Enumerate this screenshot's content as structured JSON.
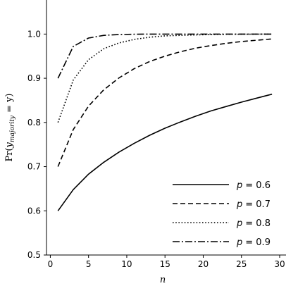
{
  "chart_data": {
    "type": "line",
    "title": "",
    "xlabel": "n",
    "ylabel": "Pr(y_majority = y)",
    "ylabel_parts": {
      "prefix": "Pr(",
      "var": "y",
      "sub": "majority",
      "suffix": " = y)"
    },
    "xlim": [
      -0.5,
      30
    ],
    "ylim": [
      0.5,
      1.05
    ],
    "xticks": [
      0,
      5,
      10,
      15,
      20,
      25,
      30
    ],
    "yticks": [
      0.5,
      0.6,
      0.7,
      0.8,
      0.9,
      1.0
    ],
    "xtick_labels": [
      "0",
      "5",
      "10",
      "15",
      "20",
      "25",
      "30"
    ],
    "ytick_labels": [
      "0.5",
      "0.6",
      "0.7",
      "0.8",
      "0.9",
      "1.0"
    ],
    "grid": false,
    "legend_position": "bottom-right",
    "x": [
      1,
      3,
      5,
      7,
      9,
      11,
      13,
      15,
      17,
      19,
      21,
      23,
      25,
      27,
      29
    ],
    "series": [
      {
        "name": "p = 0.6",
        "name_var": "p",
        "name_value": "= 0.6",
        "style": "solid",
        "values": [
          0.6,
          0.648,
          0.683,
          0.71,
          0.733,
          0.753,
          0.771,
          0.787,
          0.801,
          0.814,
          0.826,
          0.836,
          0.846,
          0.855,
          0.864
        ]
      },
      {
        "name": "p = 0.7",
        "name_var": "p",
        "name_value": "= 0.7",
        "style": "dashed",
        "values": [
          0.7,
          0.784,
          0.837,
          0.874,
          0.901,
          0.922,
          0.938,
          0.95,
          0.96,
          0.968,
          0.974,
          0.979,
          0.983,
          0.986,
          0.989
        ]
      },
      {
        "name": "p = 0.8",
        "name_var": "p",
        "name_value": "= 0.8",
        "style": "dotted",
        "values": [
          0.8,
          0.896,
          0.942,
          0.967,
          0.98,
          0.988,
          0.993,
          0.996,
          0.997,
          0.998,
          0.999,
          0.9994,
          0.9997,
          0.9998,
          0.9999
        ]
      },
      {
        "name": "p = 0.9",
        "name_var": "p",
        "name_value": "= 0.9",
        "style": "dashdot",
        "values": [
          0.9,
          0.972,
          0.991,
          0.997,
          0.999,
          0.9997,
          0.9999,
          1.0,
          1.0,
          1.0,
          1.0,
          1.0,
          1.0,
          1.0,
          1.0
        ]
      }
    ]
  }
}
